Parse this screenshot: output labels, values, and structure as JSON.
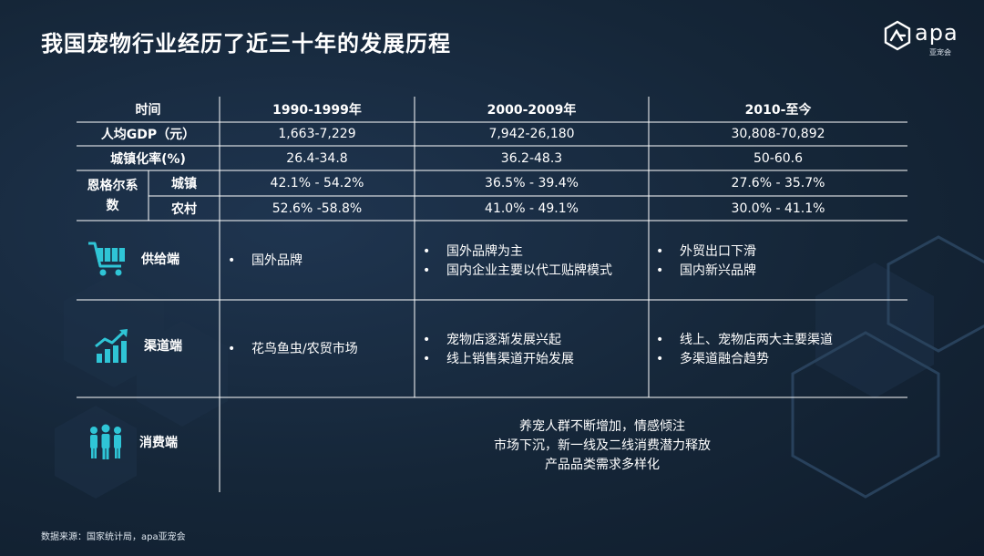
{
  "title": "我国宠物行业经历了近三十年的发展历程",
  "logo": {
    "text": "apa",
    "sub": "亚宠会"
  },
  "table": {
    "header": [
      "时间",
      "1990-1999年",
      "2000-2009年",
      "2010-至今"
    ],
    "gdp": {
      "label": "人均GDP（元）",
      "values": [
        "1,663-7,229",
        "7,942-26,180",
        "30,808-70,892"
      ]
    },
    "urban": {
      "label": "城镇化率(%)",
      "values": [
        "26.4-34.8",
        "36.2-48.3",
        "50-60.6"
      ]
    },
    "engel": {
      "label": "恩格尔系数",
      "town": {
        "label": "城镇",
        "values": [
          "42.1% - 54.2%",
          "36.5% - 39.4%",
          "27.6% - 35.7%"
        ]
      },
      "rural": {
        "label": "农村",
        "values": [
          "52.6% -58.8%",
          "41.0% - 49.1%",
          "30.0% - 41.1%"
        ]
      }
    }
  },
  "supply": {
    "label": "供给端",
    "icon": "shopping-cart-icon",
    "cols": [
      [
        "国外品牌"
      ],
      [
        "国外品牌为主",
        "国内企业主要以代工贴牌模式"
      ],
      [
        "外贸出口下滑",
        "国内新兴品牌"
      ]
    ]
  },
  "channel": {
    "label": "渠道端",
    "icon": "growth-chart-icon",
    "cols": [
      [
        "花鸟鱼虫/农贸市场"
      ],
      [
        "宠物店逐渐发展兴起",
        "线上销售渠道开始发展"
      ],
      [
        "线上、宠物店两大主要渠道",
        "多渠道融合趋势"
      ]
    ]
  },
  "consumer": {
    "label": "消费端",
    "icon": "people-icon",
    "lines": [
      "养宠人群不断增加，情感倾注",
      "市场下沉，新一线及二线消费潜力释放",
      "产品品类需求多样化"
    ]
  },
  "bullet": "•",
  "source": "数据来源：国家统计局，apa亚宠会",
  "colors": {
    "accent": "#2fc5d6",
    "line": "#ffffff",
    "bg": "#152638"
  }
}
